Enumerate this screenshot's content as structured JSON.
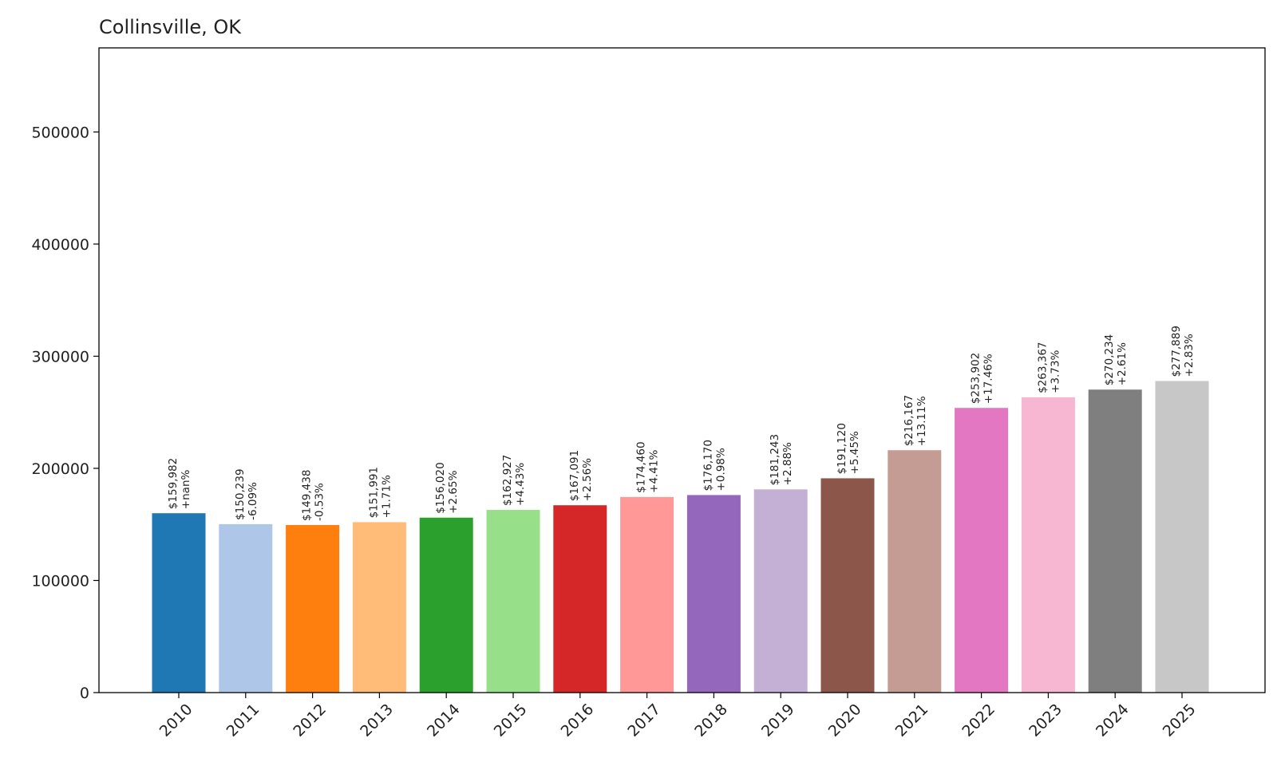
{
  "chart_data": {
    "type": "bar",
    "title": "Collinsville, OK",
    "xlabel": "",
    "ylabel": "",
    "ylim": [
      0,
      575000
    ],
    "yticks": [
      0,
      100000,
      200000,
      300000,
      400000,
      500000
    ],
    "grid": false,
    "categories": [
      "2010",
      "2011",
      "2012",
      "2013",
      "2014",
      "2015",
      "2016",
      "2017",
      "2018",
      "2019",
      "2020",
      "2021",
      "2022",
      "2023",
      "2024",
      "2025"
    ],
    "values": [
      159982,
      150239,
      149438,
      151991,
      156020,
      162927,
      167091,
      174460,
      176170,
      181243,
      191120,
      216167,
      253902,
      263367,
      270234,
      277889
    ],
    "value_labels": [
      "$159,982",
      "$150,239",
      "$149,438",
      "$151,991",
      "$156,020",
      "$162,927",
      "$167,091",
      "$174,460",
      "$176,170",
      "$181,243",
      "$191,120",
      "$216,167",
      "$253,902",
      "$263,367",
      "$270,234",
      "$277,889"
    ],
    "change_labels": [
      "+nan%",
      "-6.09%",
      "-0.53%",
      "+1.71%",
      "+2.65%",
      "+4.43%",
      "+2.56%",
      "+4.41%",
      "+0.98%",
      "+2.88%",
      "+5.45%",
      "+13.11%",
      "+17.46%",
      "+3.73%",
      "+2.61%",
      "+2.83%"
    ],
    "colors": [
      "#1f77b4",
      "#aec7e8",
      "#ff7f0e",
      "#ffbb78",
      "#2ca02c",
      "#98df8a",
      "#d62728",
      "#ff9896",
      "#9467bd",
      "#c5b0d5",
      "#8c564b",
      "#c49c94",
      "#e377c2",
      "#f7b6d2",
      "#7f7f7f",
      "#c7c7c7"
    ]
  }
}
